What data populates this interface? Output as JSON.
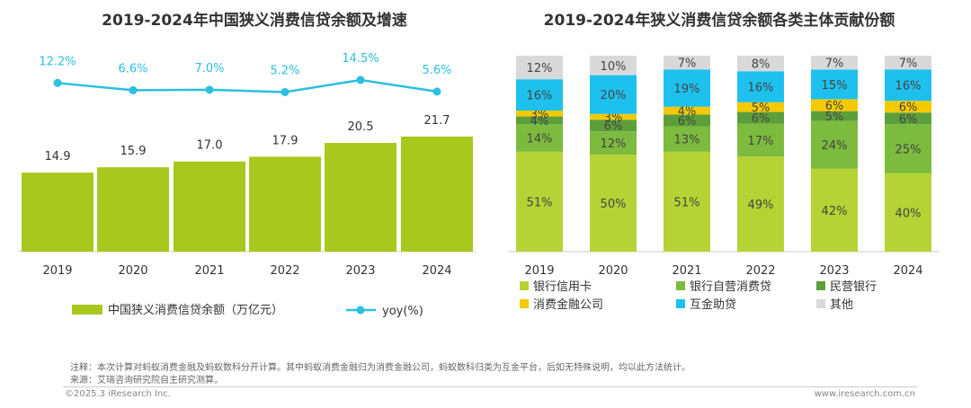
{
  "chart_data": [
    {
      "type": "bar+line",
      "title": "2019-2024年中国狭义消费信贷余额及增速",
      "categories": [
        "2019",
        "2020",
        "2021",
        "2022",
        "2023",
        "2024"
      ],
      "series": [
        {
          "name": "中国狭义消费信贷余额（万亿元）",
          "type": "bar",
          "values": [
            14.9,
            15.9,
            17.0,
            17.9,
            20.5,
            21.7
          ],
          "labels": [
            "14.9",
            "15.9",
            "17.0",
            "17.9",
            "20.5",
            "21.7"
          ],
          "color": "#a8c81e"
        },
        {
          "name": "yoy(%)",
          "type": "line",
          "values": [
            12.2,
            6.6,
            7.0,
            5.2,
            14.5,
            5.6
          ],
          "labels": [
            "12.2%",
            "6.6%",
            "7.0%",
            "5.2%",
            "14.5%",
            "5.6%"
          ],
          "color": "#2cbfe0"
        }
      ],
      "legend": "bottom"
    },
    {
      "type": "stacked-bar",
      "title": "2019-2024年狭义消费信贷余额各类主体贡献份额",
      "categories": [
        "2019",
        "2020",
        "2021",
        "2022",
        "2023",
        "2024"
      ],
      "series": [
        {
          "name": "银行信用卡",
          "values": [
            51,
            50,
            51,
            49,
            42,
            40
          ],
          "color": "#b5d334"
        },
        {
          "name": "银行自营消费贷",
          "values": [
            14,
            12,
            13,
            17,
            24,
            25
          ],
          "color": "#7cbb3e"
        },
        {
          "name": "民营银行",
          "values": [
            4,
            6,
            6,
            6,
            5,
            6
          ],
          "color": "#5c9f3a"
        },
        {
          "name": "消费金融公司",
          "values": [
            3,
            3,
            4,
            5,
            6,
            6
          ],
          "color": "#f5c900"
        },
        {
          "name": "互金助贷",
          "values": [
            16,
            20,
            19,
            16,
            15,
            16
          ],
          "color": "#1ec0ee"
        },
        {
          "name": "其他",
          "values": [
            12,
            10,
            7,
            8,
            7,
            7
          ],
          "color": "#d9d9d9"
        }
      ],
      "unit": "%",
      "legend": "bottom"
    }
  ],
  "notes": {
    "note": "注释：本次计算对蚂蚁消费金融及蚂蚁数科分开计算。其中蚂蚁消费金融归为消费金融公司，蚂蚁数科归类为互金平台，后如无特殊说明，均以此方法统计。",
    "source": "来源：艾瑞咨询研究院自主研究测算。",
    "copyright": "©2025.3 iResearch Inc.",
    "website": "www.iresearch.com.cn"
  }
}
